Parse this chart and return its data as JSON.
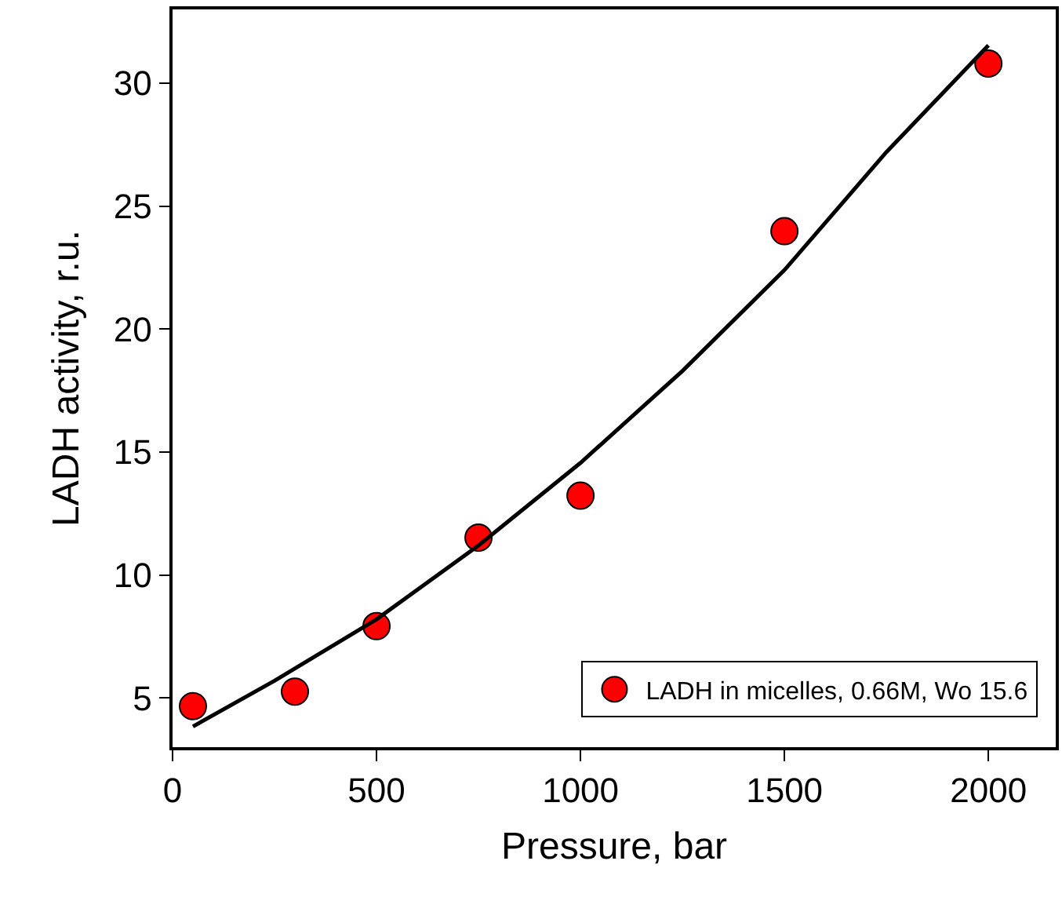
{
  "chart_data": {
    "type": "scatter",
    "xlabel": "Pressure, bar",
    "ylabel": "LADH activity, r.u.",
    "series": [
      {
        "name": "LADH in micelles, 0.66M, Wo 15.6",
        "color": "#ff0000",
        "marker": "circle",
        "x": [
          50,
          300,
          500,
          750,
          1000,
          1500,
          2000
        ],
        "values": [
          4.67,
          5.26,
          7.92,
          11.52,
          13.23,
          23.98,
          30.8
        ]
      },
      {
        "type": "line",
        "color": "#000000",
        "marker": "none",
        "x": [
          50,
          250,
          500,
          750,
          1000,
          1250,
          1500,
          1750,
          2000
        ],
        "values": [
          3.84,
          5.7,
          8.2,
          11.2,
          14.56,
          18.3,
          22.4,
          27.2,
          31.54
        ]
      }
    ],
    "xlim": [
      0,
      2165
    ],
    "xticks": [
      0,
      500,
      1000,
      1500,
      2000
    ],
    "ylim": [
      3,
      33
    ],
    "yticks": [
      5,
      10,
      15,
      20,
      25,
      30
    ],
    "legend": "bottom right"
  }
}
